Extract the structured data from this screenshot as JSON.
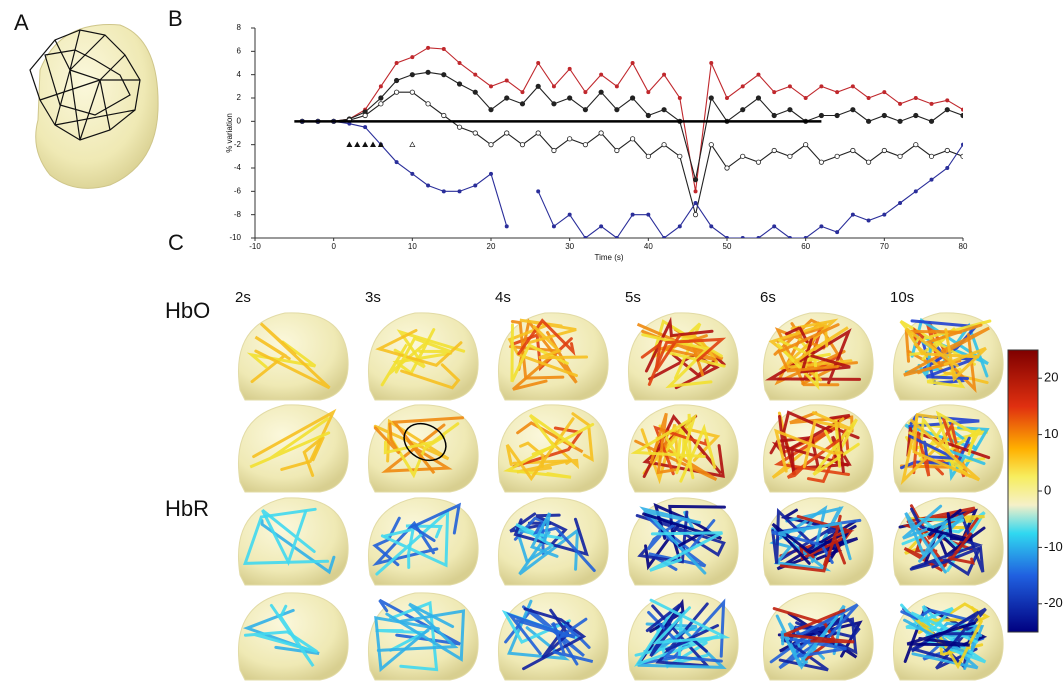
{
  "panels": [
    "A",
    "B",
    "C"
  ],
  "chart_data": {
    "type": "line",
    "x_label": "Time (s)",
    "y_label": "% variation",
    "x": [
      -6,
      -4,
      -2,
      0,
      2,
      4,
      6,
      8,
      10,
      12,
      14,
      16,
      18,
      20,
      22,
      24,
      26,
      28,
      30,
      32,
      34,
      36,
      38,
      40,
      42,
      44,
      46,
      48,
      50,
      52,
      54,
      56,
      58,
      60,
      62,
      64,
      66,
      68,
      70,
      72,
      74,
      76,
      78,
      80
    ],
    "series": [
      {
        "color": "#c0282d",
        "marker": "dot",
        "values": [
          null,
          0,
          0,
          0,
          0.2,
          1,
          3,
          5,
          5.5,
          6.3,
          6.2,
          5,
          4,
          3,
          3.5,
          2.5,
          5,
          3,
          4.5,
          2.5,
          4,
          3,
          5,
          2.5,
          4,
          2,
          -6,
          5,
          2,
          3,
          4,
          2.5,
          3,
          2,
          3,
          2.5,
          3,
          2,
          2.5,
          1.5,
          2,
          1.5,
          1.8,
          1
        ]
      },
      {
        "color": "#222222",
        "marker": "filled",
        "values": [
          null,
          0,
          0,
          0,
          0.2,
          0.8,
          2,
          3.5,
          4,
          4.2,
          4,
          3.2,
          2.5,
          1,
          2,
          1.5,
          3,
          1.5,
          2,
          1,
          2.5,
          1,
          2,
          0.5,
          1,
          0,
          -5,
          2,
          0,
          1,
          2,
          0.5,
          1,
          0,
          0.5,
          0.5,
          1,
          0,
          0.5,
          0,
          0.5,
          0,
          1,
          0.5
        ]
      },
      {
        "color": "#222222",
        "marker": "open",
        "values": [
          null,
          0,
          0,
          0,
          0.1,
          0.5,
          1.5,
          2.5,
          2.5,
          1.5,
          0.5,
          -0.5,
          -1,
          -2,
          -1,
          -2,
          -1,
          -2.5,
          -1.5,
          -2,
          -1,
          -2.5,
          -1.5,
          -3,
          -2,
          -3,
          -8,
          -2,
          -4,
          -3,
          -3.5,
          -2.5,
          -3,
          -2,
          -3.5,
          -3,
          -2.5,
          -3.5,
          -2.5,
          -3,
          -2,
          -3,
          -2.5,
          -3
        ]
      },
      {
        "color": "#2a2e9a",
        "marker": "dot",
        "values": [
          null,
          0,
          0,
          0,
          -0.2,
          -0.5,
          -2,
          -3.5,
          -4.5,
          -5.5,
          -6,
          -6,
          -5.5,
          -4.5,
          -9,
          null,
          -6,
          -9,
          -8,
          -10,
          -9,
          -10,
          -8,
          -8,
          -10,
          -9,
          -7,
          -9,
          -10,
          -10,
          -10,
          -9,
          -10,
          -10,
          -9,
          -9.5,
          -8,
          -8.5,
          -8,
          -7,
          -6,
          -5,
          -4,
          -2
        ]
      }
    ],
    "reference_line": {
      "value": 0,
      "x_range": [
        -5,
        62
      ]
    },
    "markers": {
      "x": [
        2,
        3,
        4,
        5,
        6,
        10
      ],
      "y": -2
    },
    "xlim": [
      -10,
      80
    ],
    "xticks": [
      -10,
      0,
      10,
      20,
      30,
      40,
      50,
      60,
      70,
      80
    ],
    "ylim": [
      -10,
      8
    ],
    "yticks": [
      -10,
      -8,
      -6,
      -4,
      -2,
      0,
      2,
      4,
      6,
      8
    ]
  },
  "grid": {
    "rows": [
      "HbO",
      "HbR"
    ],
    "columns": [
      "2s",
      "3s",
      "4s",
      "5s",
      "6s",
      "10s"
    ]
  },
  "colorbar": {
    "lim": [
      -25,
      25
    ],
    "ticks": [
      20,
      10,
      0,
      -10,
      -20
    ]
  }
}
